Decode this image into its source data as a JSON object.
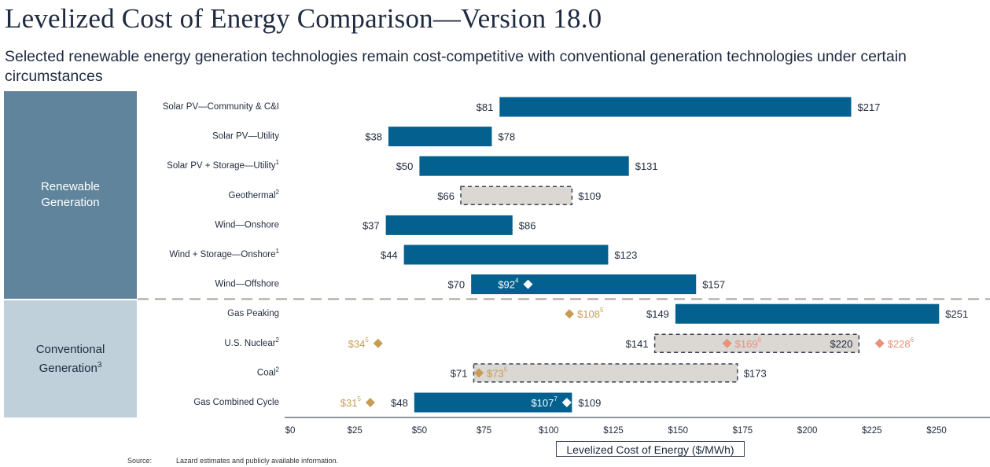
{
  "header": {
    "title": "Levelized Cost of Energy Comparison—Version 18.0",
    "subtitle": "Selected renewable energy generation technologies remain cost-competitive with conventional generation technologies under certain circumstances"
  },
  "groups": {
    "renewable": "Renewable Generation",
    "conventional": "Conventional Generation",
    "conventional_sup": "3"
  },
  "footer": {
    "source_label": "Source:",
    "source_text": "Lazard estimates and publicly available information."
  },
  "colors": {
    "bar": "#03608f",
    "hatched_fill": "#dbd7d3",
    "hatched_border": "#3a4256",
    "marker_white": "#ffffff",
    "marker_gold": "#c89c55",
    "marker_salmon": "#e8927a",
    "divider": "#aaa39b",
    "renewable_panel": "#5f849c",
    "conventional_panel": "#bfd0db"
  },
  "chart_data": {
    "type": "bar",
    "orientation": "horizontal-range",
    "title": "Levelized Cost of Energy Comparison—Version 18.0",
    "xlabel": "Levelized Cost of Energy ($/MWh)",
    "ylabel": "",
    "xlim": [
      0,
      260
    ],
    "xticks": [
      0,
      25,
      50,
      75,
      100,
      125,
      150,
      175,
      200,
      225,
      250
    ],
    "xtick_labels": [
      "$0",
      "$25",
      "$50",
      "$75",
      "$100",
      "$125",
      "$150",
      "$175",
      "$200",
      "$225",
      "$250"
    ],
    "grid": false,
    "categories": [
      "Solar PV—Community & C&I",
      "Solar PV—Utility",
      "Solar PV + Storage—Utility",
      "Geothermal",
      "Wind—Onshore",
      "Wind + Storage—Onshore",
      "Wind—Offshore",
      "Gas Peaking",
      "U.S. Nuclear",
      "Coal",
      "Gas Combined Cycle"
    ],
    "rows": [
      {
        "label": "Solar PV—Community & C&I",
        "sup": "",
        "group": "renewable",
        "low": 81,
        "high": 217,
        "style": "solid",
        "markers": []
      },
      {
        "label": "Solar PV—Utility",
        "sup": "",
        "group": "renewable",
        "low": 38,
        "high": 78,
        "style": "solid",
        "markers": []
      },
      {
        "label": "Solar PV + Storage—Utility",
        "sup": "1",
        "group": "renewable",
        "low": 50,
        "high": 131,
        "style": "solid",
        "markers": []
      },
      {
        "label": "Geothermal",
        "sup": "2",
        "group": "renewable",
        "low": 66,
        "high": 109,
        "style": "dashed",
        "markers": []
      },
      {
        "label": "Wind—Onshore",
        "sup": "",
        "group": "renewable",
        "low": 37,
        "high": 86,
        "style": "solid",
        "markers": []
      },
      {
        "label": "Wind + Storage—Onshore",
        "sup": "1",
        "group": "renewable",
        "low": 44,
        "high": 123,
        "style": "solid",
        "markers": []
      },
      {
        "label": "Wind—Offshore",
        "sup": "",
        "group": "renewable",
        "low": 70,
        "high": 157,
        "style": "solid",
        "markers": [
          {
            "value": 92,
            "label": "$92",
            "sup": "4",
            "color": "white",
            "label_side": "left"
          }
        ]
      },
      {
        "label": "Gas Peaking",
        "sup": "",
        "group": "conventional",
        "low": 149,
        "high": 251,
        "style": "solid",
        "markers": [
          {
            "value": 108,
            "label": "$108",
            "sup": "5",
            "color": "gold",
            "label_side": "right"
          }
        ]
      },
      {
        "label": "U.S. Nuclear",
        "sup": "2",
        "group": "conventional",
        "low": 141,
        "high": 220,
        "style": "dashed",
        "high_label_inside": true,
        "markers": [
          {
            "value": 34,
            "label": "$34",
            "sup": "5",
            "color": "gold",
            "label_side": "left"
          },
          {
            "value": 169,
            "label": "$169",
            "sup": "6",
            "color": "salmon",
            "label_side": "right"
          },
          {
            "value": 228,
            "label": "$228",
            "sup": "6",
            "color": "salmon",
            "label_side": "right"
          }
        ]
      },
      {
        "label": "Coal",
        "sup": "2",
        "group": "conventional",
        "low": 71,
        "high": 173,
        "style": "dashed",
        "markers": [
          {
            "value": 73,
            "label": "$73",
            "sup": "5",
            "color": "gold",
            "label_side": "right"
          }
        ]
      },
      {
        "label": "Gas Combined Cycle",
        "sup": "",
        "group": "conventional",
        "low": 48,
        "high": 109,
        "style": "solid",
        "markers": [
          {
            "value": 31,
            "label": "$31",
            "sup": "5",
            "color": "gold",
            "label_side": "left"
          },
          {
            "value": 107,
            "label": "$107",
            "sup": "7",
            "color": "white",
            "label_side": "left"
          }
        ]
      }
    ],
    "value_prefix": "$"
  }
}
